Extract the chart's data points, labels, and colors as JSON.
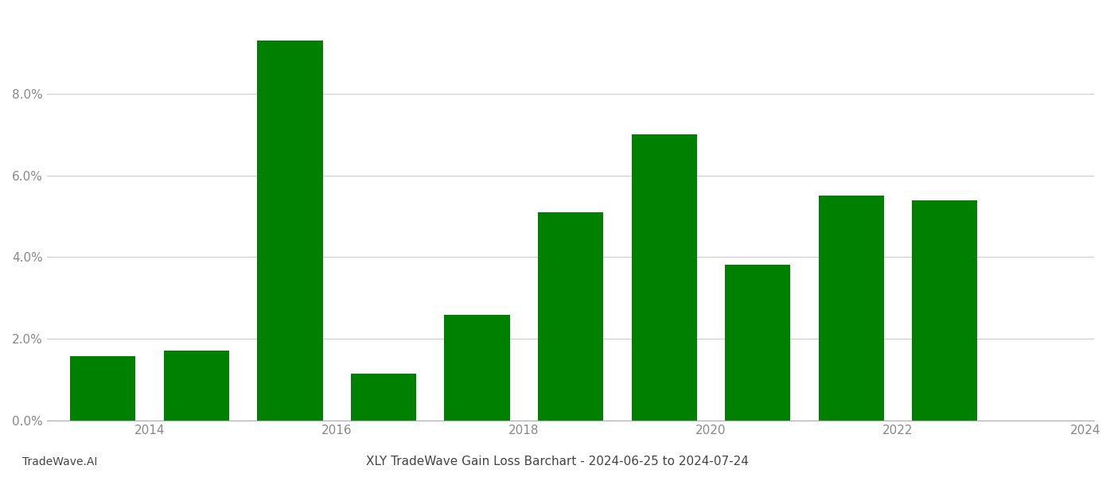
{
  "years": [
    2014,
    2015,
    2016,
    2017,
    2018,
    2019,
    2020,
    2021,
    2022,
    2023
  ],
  "values": [
    0.0157,
    0.0172,
    0.093,
    0.0115,
    0.0258,
    0.051,
    0.07,
    0.0382,
    0.055,
    0.054
  ],
  "bar_color": "#008000",
  "background_color": "#ffffff",
  "title": "XLY TradeWave Gain Loss Barchart - 2024-06-25 to 2024-07-24",
  "footer_left": "TradeWave.AI",
  "ylim_min": 0.0,
  "ylim_max": 0.1,
  "ytick_values": [
    0.0,
    0.02,
    0.04,
    0.06,
    0.08
  ],
  "grid_color": "#cccccc",
  "axis_color": "#aaaaaa",
  "tick_label_color": "#888888",
  "footer_color": "#444444",
  "title_color": "#444444",
  "title_fontsize": 11,
  "footer_fontsize": 10,
  "tick_fontsize": 11,
  "bar_width": 0.7,
  "xtick_label_positions": [
    2014.5,
    2016.5,
    2018.5,
    2020.5,
    2022.5,
    2024.5
  ],
  "xtick_labels": [
    "2014",
    "2016",
    "2018",
    "2020",
    "2022",
    "2024"
  ]
}
